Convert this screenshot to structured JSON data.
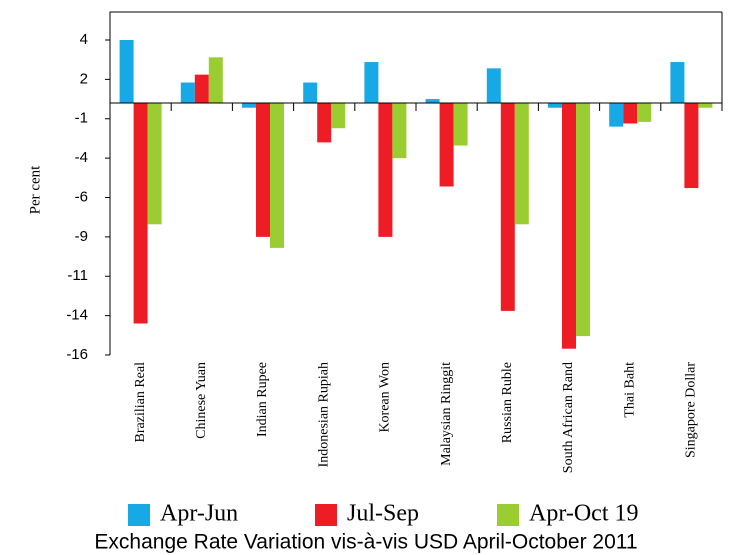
{
  "chart_data": {
    "type": "bar",
    "title": "Exchange Rate Variation vis-à-vis USD April-October 2011",
    "y_label": "Per cent",
    "categories": [
      "Brazilian Real",
      "Chinese Yuan",
      "Indian Rupee",
      "Indonesian Rupiah",
      "Korean Won",
      "Malaysian Ringgit",
      "Russian Ruble",
      "South African Rand",
      "Thai Baht",
      "Singapore Dollar"
    ],
    "series": [
      {
        "name": "Apr-Jun",
        "color": "#17a8e6",
        "values": [
          4.0,
          1.3,
          -0.3,
          1.3,
          2.6,
          0.25,
          2.2,
          -0.3,
          -1.5,
          2.6
        ]
      },
      {
        "name": "Jul-Sep",
        "color": "#ee1c25",
        "values": [
          -14.0,
          1.8,
          -8.5,
          -2.5,
          -8.5,
          -5.3,
          -13.2,
          -15.6,
          -1.3,
          -5.4
        ]
      },
      {
        "name": "Apr-Oct 19",
        "color": "#9acd32",
        "values": [
          -7.7,
          2.9,
          -9.2,
          -1.6,
          -3.5,
          -2.7,
          -7.7,
          -14.8,
          -1.2,
          -0.3
        ]
      }
    ],
    "ylim": [
      -16,
      5.8
    ],
    "yticks": [
      4,
      {
        "value": 1.5,
        "label": "2"
      },
      -1,
      {
        "value": -3.5,
        "label": "-4"
      },
      -6,
      {
        "value": -8.5,
        "label": "-9"
      },
      -11,
      {
        "value": -13.5,
        "label": "-14"
      },
      -16
    ]
  }
}
